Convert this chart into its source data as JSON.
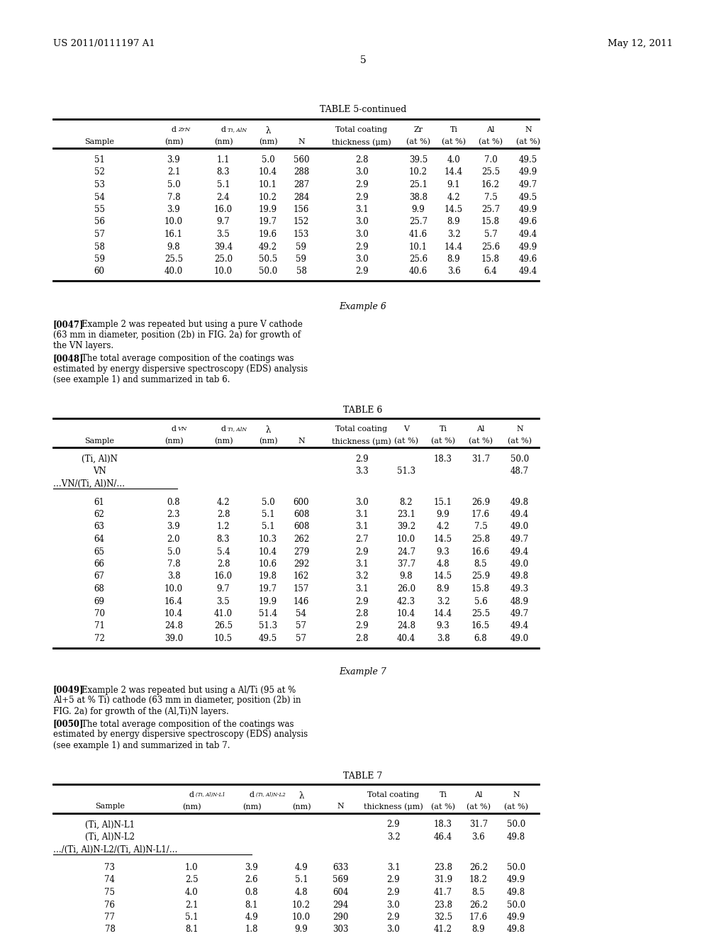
{
  "header_left": "US 2011/0111197 A1",
  "header_right": "May 12, 2011",
  "page_number": "5",
  "bg": "#ffffff",
  "fg": "#000000",
  "table5_title": "TABLE 5-continued",
  "table5_rows": [
    [
      "51",
      "3.9",
      "1.1",
      "5.0",
      "560",
      "2.8",
      "39.5",
      "4.0",
      "7.0",
      "49.5"
    ],
    [
      "52",
      "2.1",
      "8.3",
      "10.4",
      "288",
      "3.0",
      "10.2",
      "14.4",
      "25.5",
      "49.9"
    ],
    [
      "53",
      "5.0",
      "5.1",
      "10.1",
      "287",
      "2.9",
      "25.1",
      "9.1",
      "16.2",
      "49.7"
    ],
    [
      "54",
      "7.8",
      "2.4",
      "10.2",
      "284",
      "2.9",
      "38.8",
      "4.2",
      "7.5",
      "49.5"
    ],
    [
      "55",
      "3.9",
      "16.0",
      "19.9",
      "156",
      "3.1",
      "9.9",
      "14.5",
      "25.7",
      "49.9"
    ],
    [
      "56",
      "10.0",
      "9.7",
      "19.7",
      "152",
      "3.0",
      "25.7",
      "8.9",
      "15.8",
      "49.6"
    ],
    [
      "57",
      "16.1",
      "3.5",
      "19.6",
      "153",
      "3.0",
      "41.6",
      "3.2",
      "5.7",
      "49.4"
    ],
    [
      "58",
      "9.8",
      "39.4",
      "49.2",
      "59",
      "2.9",
      "10.1",
      "14.4",
      "25.6",
      "49.9"
    ],
    [
      "59",
      "25.5",
      "25.0",
      "50.5",
      "59",
      "3.0",
      "25.6",
      "8.9",
      "15.8",
      "49.6"
    ],
    [
      "60",
      "40.0",
      "10.0",
      "50.0",
      "58",
      "2.9",
      "40.6",
      "3.6",
      "6.4",
      "49.4"
    ]
  ],
  "example6_title": "Example 6",
  "example6_para1_num": "[0047]",
  "example6_para1_text": "Example 2 was repeated but using a pure V cathode\n(63 mm in diameter, position (2b) in FIG. 2a) for growth of\nthe VN layers.",
  "example6_para2_num": "[0048]",
  "example6_para2_text": "The total average composition of the coatings was\nestimated by energy dispersive spectroscopy (EDS) analysis\n(see example 1) and summarized in tab 6.",
  "table6_title": "TABLE 6",
  "table6_special": [
    [
      "(Ti, Al)N",
      "",
      "",
      "",
      "",
      "2.9",
      "",
      "18.3",
      "31.7",
      "50.0"
    ],
    [
      "VN",
      "",
      "",
      "",
      "",
      "3.3",
      "51.3",
      "",
      "",
      "48.7"
    ],
    [
      "…VN/(Ti, Al)N/…",
      "",
      "",
      "",
      "",
      "",
      "",
      "",
      "",
      ""
    ]
  ],
  "table6_rows": [
    [
      "61",
      "0.8",
      "4.2",
      "5.0",
      "600",
      "3.0",
      "8.2",
      "15.1",
      "26.9",
      "49.8"
    ],
    [
      "62",
      "2.3",
      "2.8",
      "5.1",
      "608",
      "3.1",
      "23.1",
      "9.9",
      "17.6",
      "49.4"
    ],
    [
      "63",
      "3.9",
      "1.2",
      "5.1",
      "608",
      "3.1",
      "39.2",
      "4.2",
      "7.5",
      "49.0"
    ],
    [
      "64",
      "2.0",
      "8.3",
      "10.3",
      "262",
      "2.7",
      "10.0",
      "14.5",
      "25.8",
      "49.7"
    ],
    [
      "65",
      "5.0",
      "5.4",
      "10.4",
      "279",
      "2.9",
      "24.7",
      "9.3",
      "16.6",
      "49.4"
    ],
    [
      "66",
      "7.8",
      "2.8",
      "10.6",
      "292",
      "3.1",
      "37.7",
      "4.8",
      "8.5",
      "49.0"
    ],
    [
      "67",
      "3.8",
      "16.0",
      "19.8",
      "162",
      "3.2",
      "9.8",
      "14.5",
      "25.9",
      "49.8"
    ],
    [
      "68",
      "10.0",
      "9.7",
      "19.7",
      "157",
      "3.1",
      "26.0",
      "8.9",
      "15.8",
      "49.3"
    ],
    [
      "69",
      "16.4",
      "3.5",
      "19.9",
      "146",
      "2.9",
      "42.3",
      "3.2",
      "5.6",
      "48.9"
    ],
    [
      "70",
      "10.4",
      "41.0",
      "51.4",
      "54",
      "2.8",
      "10.4",
      "14.4",
      "25.5",
      "49.7"
    ],
    [
      "71",
      "24.8",
      "26.5",
      "51.3",
      "57",
      "2.9",
      "24.8",
      "9.3",
      "16.5",
      "49.4"
    ],
    [
      "72",
      "39.0",
      "10.5",
      "49.5",
      "57",
      "2.8",
      "40.4",
      "3.8",
      "6.8",
      "49.0"
    ]
  ],
  "example7_title": "Example 7",
  "example7_para1_num": "[0049]",
  "example7_para1_text": "Example 2 was repeated but using a Al/Ti (95 at %\nAl+5 at % Ti) cathode (63 mm in diameter, position (2b) in\nFIG. 2a) for growth of the (Al,Ti)N layers.",
  "example7_para2_num": "[0050]",
  "example7_para2_text": "The total average composition of the coatings was\nestimated by energy dispersive spectroscopy (EDS) analysis\n(see example 1) and summarized in tab 7.",
  "table7_title": "TABLE 7",
  "table7_special": [
    [
      "(Ti, Al)N-L1",
      "",
      "",
      "",
      "",
      "2.9",
      "18.3",
      "31.7",
      "50.0"
    ],
    [
      "(Ti, Al)N-L2",
      "",
      "",
      "",
      "",
      "3.2",
      "46.4",
      "3.6",
      "49.8"
    ],
    [
      "…/(Ti, Al)N-L2/(Ti, Al)N-L1/…",
      "",
      "",
      "",
      "",
      "",
      "",
      "",
      ""
    ]
  ],
  "table7_rows": [
    [
      "73",
      "1.0",
      "3.9",
      "4.9",
      "633",
      "3.1",
      "23.8",
      "26.2",
      "50.0"
    ],
    [
      "74",
      "2.5",
      "2.6",
      "5.1",
      "569",
      "2.9",
      "31.9",
      "18.2",
      "49.9"
    ],
    [
      "75",
      "4.0",
      "0.8",
      "4.8",
      "604",
      "2.9",
      "41.7",
      "8.5",
      "49.8"
    ],
    [
      "76",
      "2.1",
      "8.1",
      "10.2",
      "294",
      "3.0",
      "23.8",
      "26.2",
      "50.0"
    ],
    [
      "77",
      "5.1",
      "4.9",
      "10.0",
      "290",
      "2.9",
      "32.5",
      "17.6",
      "49.9"
    ],
    [
      "78",
      "8.1",
      "1.8",
      "9.9",
      "303",
      "3.0",
      "41.2",
      "8.9",
      "49.8"
    ]
  ]
}
